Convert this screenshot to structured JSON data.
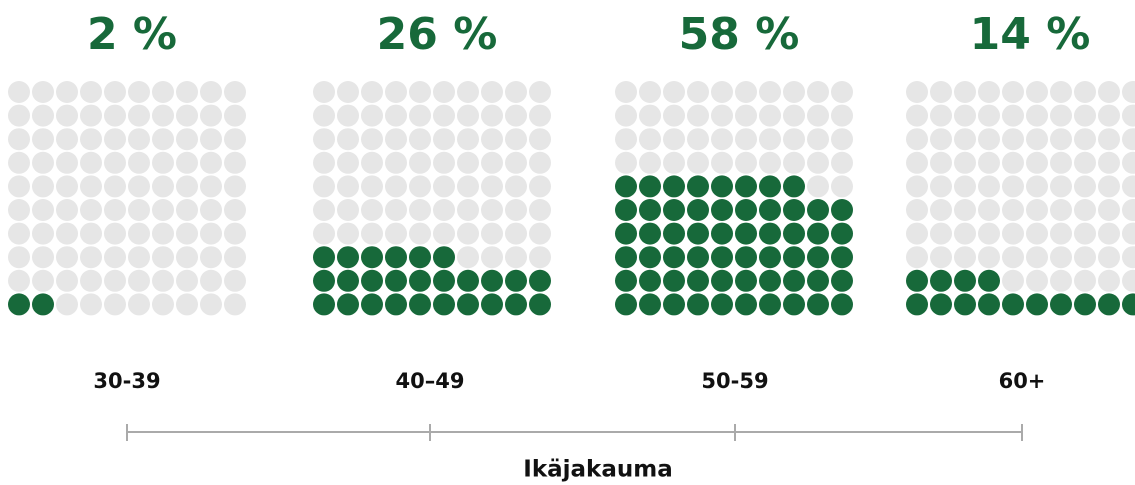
{
  "chart_data": {
    "type": "waffle",
    "categories": [
      "30-39",
      "40–49",
      "50-59",
      "60+"
    ],
    "values": [
      2,
      26,
      58,
      14
    ],
    "value_labels": [
      "2 %",
      "26 %",
      "58 %",
      "14 %"
    ],
    "color": "#17693a",
    "empty_color": "#e6e6e6",
    "xlabel": "Ikäjakauma"
  }
}
